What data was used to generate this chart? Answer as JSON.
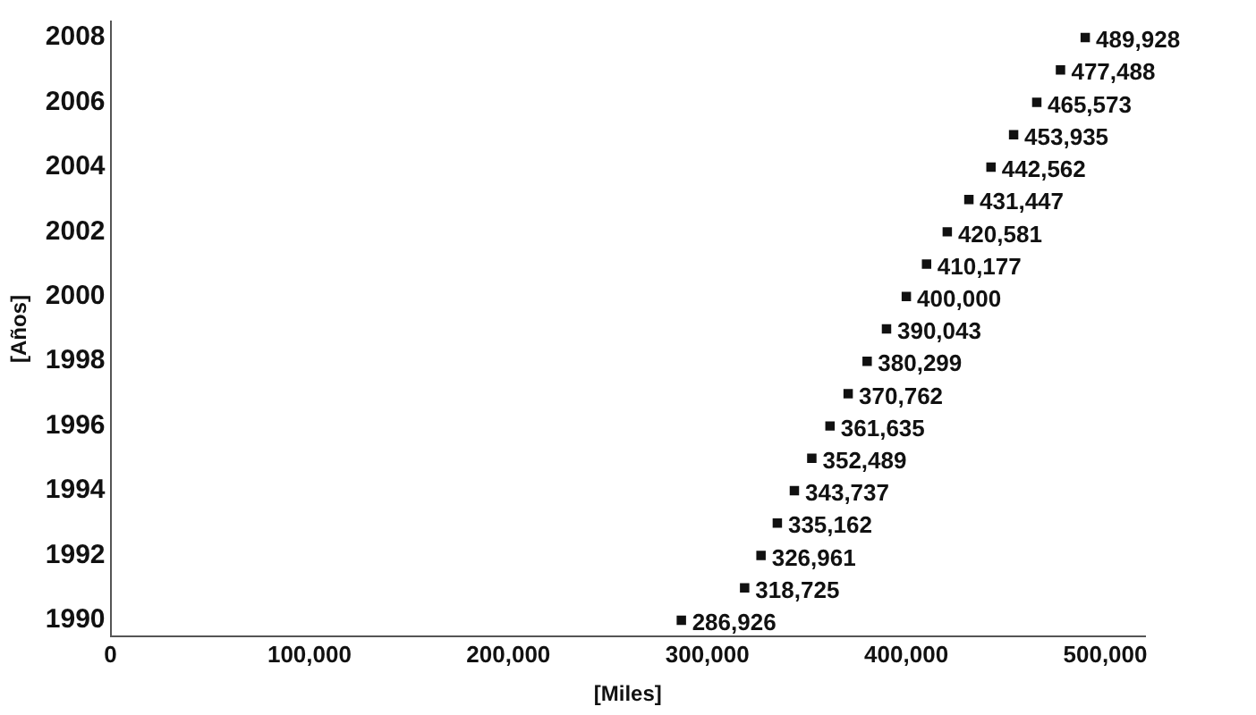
{
  "chart_data": {
    "type": "scatter",
    "orientation": "horizontal",
    "xlabel": "[Miles]",
    "ylabel": "[Años]",
    "categories": [
      "2008",
      null,
      "2006",
      null,
      "2004",
      null,
      "2002",
      null,
      "2000",
      null,
      "1998",
      null,
      "1996",
      null,
      "1994",
      null,
      "1992",
      null,
      "1990"
    ],
    "values": [
      489928,
      477488,
      465573,
      453935,
      442562,
      431447,
      420581,
      410177,
      400000,
      390043,
      380299,
      370762,
      361635,
      352489,
      343737,
      335162,
      326961,
      318725,
      286926
    ],
    "color": "#111111",
    "value_labels": [
      "489,928",
      "477,488",
      "465,573",
      "453,935",
      "442,562",
      "431,447",
      "420,581",
      "410,177",
      "400,000",
      "390,043",
      "380,299",
      "370,762",
      "361,635",
      "352,489",
      "343,737",
      "335,162",
      "326,961",
      "318,725",
      "286,926"
    ],
    "xlim": [
      0,
      520000
    ],
    "xticks": [
      {
        "value": 0,
        "label": "0"
      },
      {
        "value": 100000,
        "label": "100,000"
      },
      {
        "value": 200000,
        "label": "200,000"
      },
      {
        "value": 300000,
        "label": "300,000"
      },
      {
        "value": 400000,
        "label": "400,000"
      },
      {
        "value": 500000,
        "label": "500,000"
      }
    ],
    "grid": false,
    "legend": false
  }
}
